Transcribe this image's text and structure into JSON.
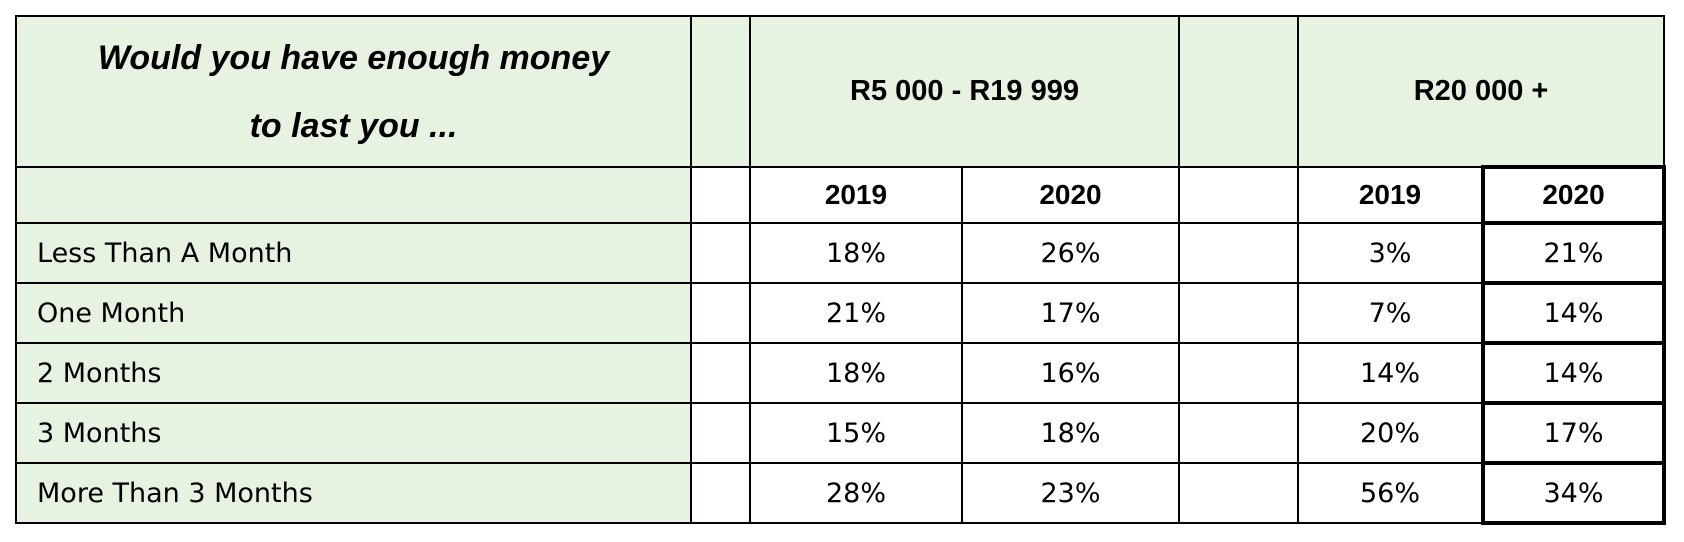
{
  "question": "Would you have enough money to last you ...",
  "question_lines": [
    "Would you have enough money",
    "to last you ..."
  ],
  "bands": [
    "R5 000 - R19 999",
    "R20 000 +"
  ],
  "years": [
    "2019",
    "2020",
    "2019",
    "2020"
  ],
  "rows": [
    {
      "label": "Less Than A Month",
      "values": [
        "18%",
        "26%",
        "3%",
        "21%"
      ]
    },
    {
      "label": "One Month",
      "values": [
        "21%",
        "17%",
        "7%",
        "14%"
      ]
    },
    {
      "label": "2 Months",
      "values": [
        "18%",
        "16%",
        "14%",
        "14%"
      ]
    },
    {
      "label": "3 Months",
      "values": [
        "15%",
        "18%",
        "20%",
        "17%"
      ]
    },
    {
      "label": "More Than 3 Months",
      "values": [
        "28%",
        "23%",
        "56%",
        "34%"
      ]
    }
  ],
  "colors": {
    "header_fill": "#e8f2e0",
    "border": "#000000"
  }
}
